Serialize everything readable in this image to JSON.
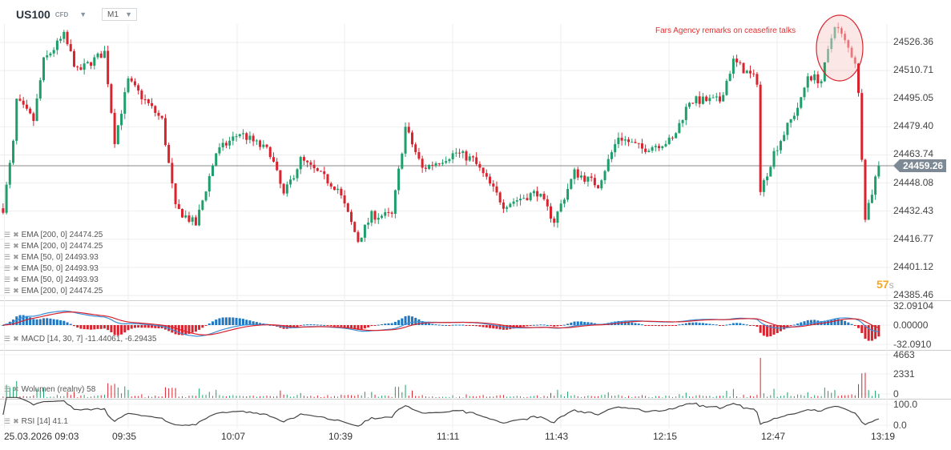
{
  "header": {
    "symbol": "US100",
    "type": "CFD",
    "timeframe": "M1"
  },
  "annotation": {
    "text": "Fars Agency remarks on ceasefire talks"
  },
  "price_axis": [
    "24526.36",
    "24510.71",
    "24495.05",
    "24479.40",
    "24463.74",
    "24448.08",
    "24432.43",
    "24416.77",
    "24401.12",
    "24385.46"
  ],
  "current_price": "24459.26",
  "timer": {
    "value": "57",
    "unit": "s"
  },
  "indicators": [
    {
      "label": "EMA [200, 0] 24474.25"
    },
    {
      "label": "EMA [200, 0] 24474.25"
    },
    {
      "label": "EMA [50, 0] 24493.93"
    },
    {
      "label": "EMA [50, 0] 24493.93"
    },
    {
      "label": "EMA [50, 0] 24493.93"
    },
    {
      "label": "EMA [200, 0] 24474.25"
    }
  ],
  "macd": {
    "label": "MACD [14, 30, 7] -11.44061, -6.29435",
    "axis": [
      "32.09104",
      "0.00000",
      "-32.0910"
    ]
  },
  "volume": {
    "label": "Wolumen (realny) 58",
    "axis": [
      "4663",
      "2331",
      "0"
    ]
  },
  "rsi": {
    "label": "RSI [14] 41.1",
    "axis": [
      "100.0",
      "0.0"
    ]
  },
  "time_axis": [
    "25.03.2026  09:03",
    "09:35",
    "10:07",
    "10:39",
    "11:11",
    "11:43",
    "12:15",
    "12:47",
    "13:19"
  ],
  "colors": {
    "up": "#1e9e6a",
    "down": "#d9232e",
    "macd_pos": "#1f78c1",
    "macd_neg": "#d9232e",
    "timer": "#f5a623"
  },
  "chart_data": {
    "type": "candlestick",
    "ylim": [
      24385.46,
      24526.36
    ],
    "price_path": [
      [
        "08:58",
        24434
      ],
      [
        "09:01",
        24470
      ],
      [
        "09:02",
        24494
      ],
      [
        "09:07",
        24483
      ],
      [
        "09:10",
        24516
      ],
      [
        "09:16",
        24530
      ],
      [
        "09:20",
        24510
      ],
      [
        "09:28",
        24521
      ],
      [
        "09:31",
        24472
      ],
      [
        "09:35",
        24505
      ],
      [
        "09:45",
        24483
      ],
      [
        "09:49",
        24434
      ],
      [
        "09:55",
        24425
      ],
      [
        "10:01",
        24465
      ],
      [
        "10:08",
        24476
      ],
      [
        "10:17",
        24465
      ],
      [
        "10:21",
        24441
      ],
      [
        "10:26",
        24461
      ],
      [
        "10:37",
        24445
      ],
      [
        "10:43",
        24416
      ],
      [
        "10:47",
        24430
      ],
      [
        "10:53",
        24430
      ],
      [
        "10:57",
        24479
      ],
      [
        "11:02",
        24456
      ],
      [
        "11:12",
        24465
      ],
      [
        "11:17",
        24461
      ],
      [
        "11:26",
        24436
      ],
      [
        "11:36",
        24443
      ],
      [
        "11:41",
        24427
      ],
      [
        "11:47",
        24454
      ],
      [
        "11:54",
        24447
      ],
      [
        "12:00",
        24474
      ],
      [
        "12:07",
        24467
      ],
      [
        "12:16",
        24472
      ],
      [
        "12:21",
        24494
      ],
      [
        "12:30",
        24494
      ],
      [
        "12:34",
        24516
      ],
      [
        "12:41",
        24505
      ],
      [
        "12:42",
        24443
      ],
      [
        "12:46",
        24465
      ],
      [
        "12:54",
        24494
      ],
      [
        "12:56",
        24508
      ],
      [
        "13:00",
        24505
      ],
      [
        "13:04",
        24537
      ],
      [
        "13:10",
        24516
      ],
      [
        "13:11",
        24497
      ],
      [
        "13:13",
        24430
      ],
      [
        "13:15",
        24443
      ],
      [
        "13:17",
        24459
      ]
    ]
  }
}
